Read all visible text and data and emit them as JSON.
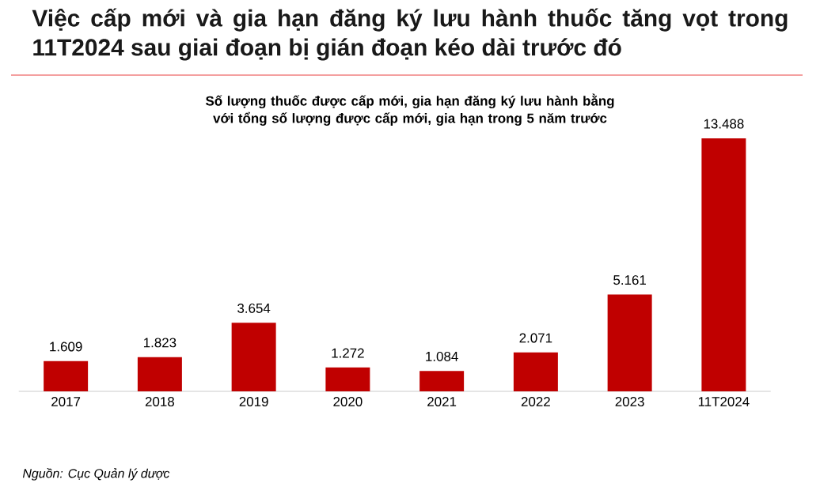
{
  "chart_data": {
    "type": "bar",
    "title": "Việc cấp mới và gia hạn đăng ký lưu hành thuốc tăng vọt trong 11T2024 sau giai đoạn bị gián đoạn kéo dài trước đó",
    "subtitle": "Số lượng thuốc được cấp mới, gia hạn đăng ký lưu hành bằng với tổng số lượng được cấp mới, gia hạn trong 5 năm trước",
    "categories": [
      "2017",
      "2018",
      "2019",
      "2020",
      "2021",
      "2022",
      "2023",
      "11T2024"
    ],
    "values": [
      1609,
      1823,
      3654,
      1272,
      1084,
      2071,
      5161,
      13488
    ],
    "value_labels": [
      "1.609",
      "1.823",
      "3.654",
      "1.272",
      "1.084",
      "2.071",
      "5.161",
      "13.488"
    ],
    "color": "#c00000",
    "tick_labels": "x",
    "annotations": [
      "Nguồn: Cục Quản lý dược"
    ]
  }
}
